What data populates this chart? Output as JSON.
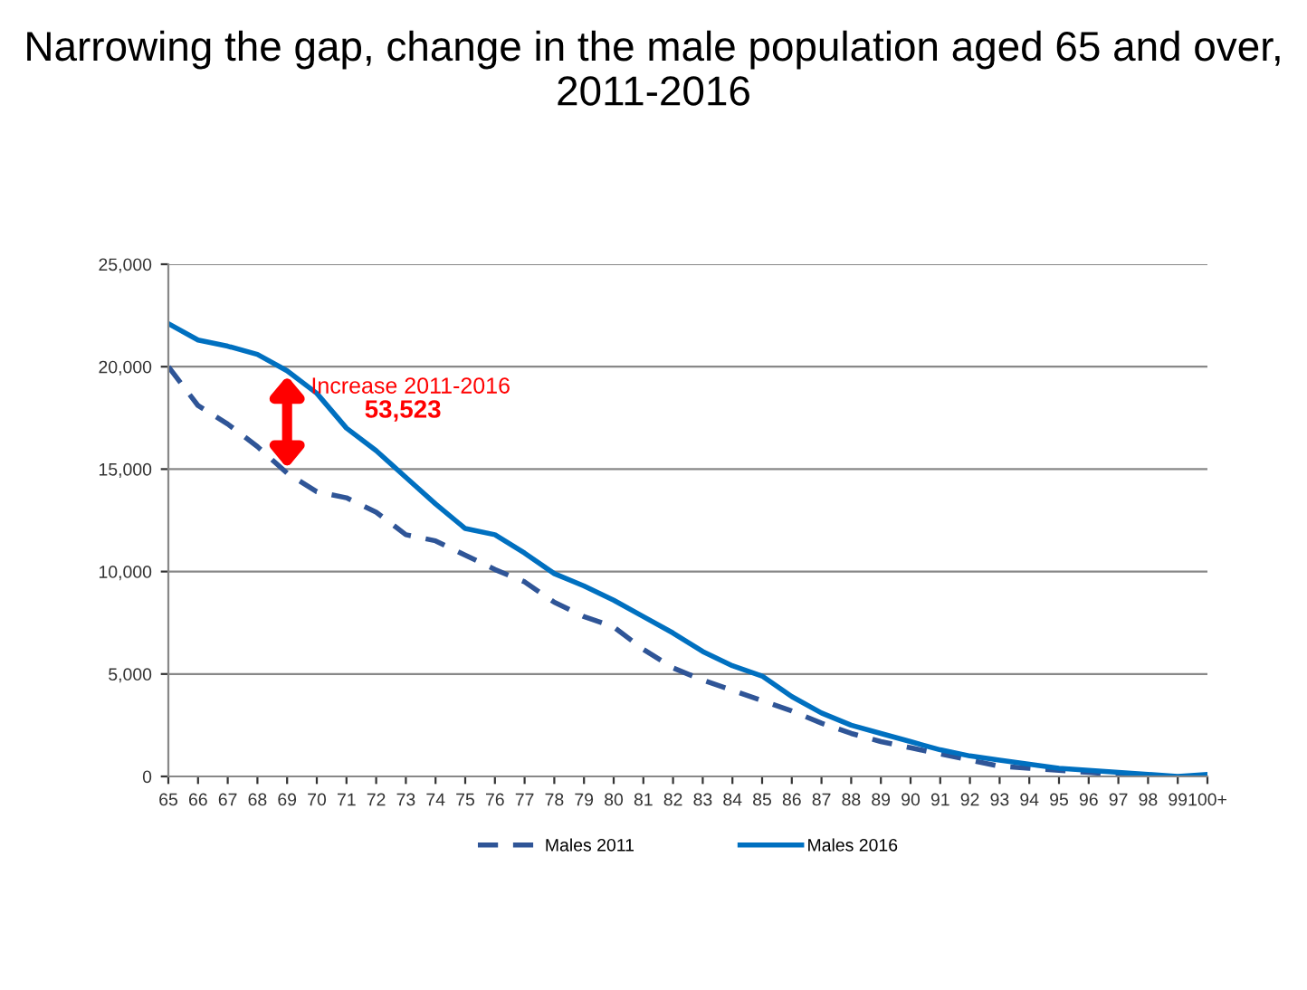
{
  "chart_data": {
    "type": "line",
    "title": "Narrowing the gap, change in the male population aged 65 and over, 2011-2016",
    "categories": [
      "65",
      "66",
      "67",
      "68",
      "69",
      "70",
      "71",
      "72",
      "73",
      "74",
      "75",
      "76",
      "77",
      "78",
      "79",
      "80",
      "81",
      "82",
      "83",
      "84",
      "85",
      "86",
      "87",
      "88",
      "89",
      "90",
      "91",
      "92",
      "93",
      "94",
      "95",
      "96",
      "97",
      "98",
      "99",
      "100+"
    ],
    "series": [
      {
        "name": "Males 2011",
        "color": "#2f5597",
        "line_style": "dashed",
        "values": [
          20000,
          18100,
          17200,
          16100,
          14800,
          13900,
          13600,
          12900,
          11800,
          11500,
          10800,
          10100,
          9500,
          8500,
          7800,
          7300,
          6200,
          5300,
          4700,
          4200,
          3700,
          3200,
          2600,
          2100,
          1700,
          1400,
          1100,
          800,
          500,
          400,
          300,
          200,
          100,
          0,
          0,
          0
        ]
      },
      {
        "name": "Males 2016",
        "color": "#0070c0",
        "line_style": "solid",
        "values": [
          22100,
          21300,
          21000,
          20600,
          19800,
          18700,
          17000,
          15900,
          14600,
          13300,
          12100,
          11800,
          10900,
          9900,
          9300,
          8600,
          7800,
          7000,
          6100,
          5400,
          4900,
          3900,
          3100,
          2500,
          2100,
          1700,
          1300,
          1000,
          800,
          600,
          400,
          300,
          200,
          100,
          0,
          100
        ]
      }
    ],
    "ylim": [
      0,
      25000
    ],
    "yticks": [
      {
        "value": 0,
        "label": "0"
      },
      {
        "value": 5000,
        "label": "5,000"
      },
      {
        "value": 10000,
        "label": "10,000"
      },
      {
        "value": 15000,
        "label": "15,000"
      },
      {
        "value": 20000,
        "label": "20,000"
      },
      {
        "value": 25000,
        "label": "25,000"
      }
    ],
    "grid": "y",
    "legend": "bottom",
    "marker": "none",
    "annotations": [
      {
        "text": "Increase 2011-2016\n53,523",
        "x": "69",
        "y": 19800
      }
    ]
  }
}
